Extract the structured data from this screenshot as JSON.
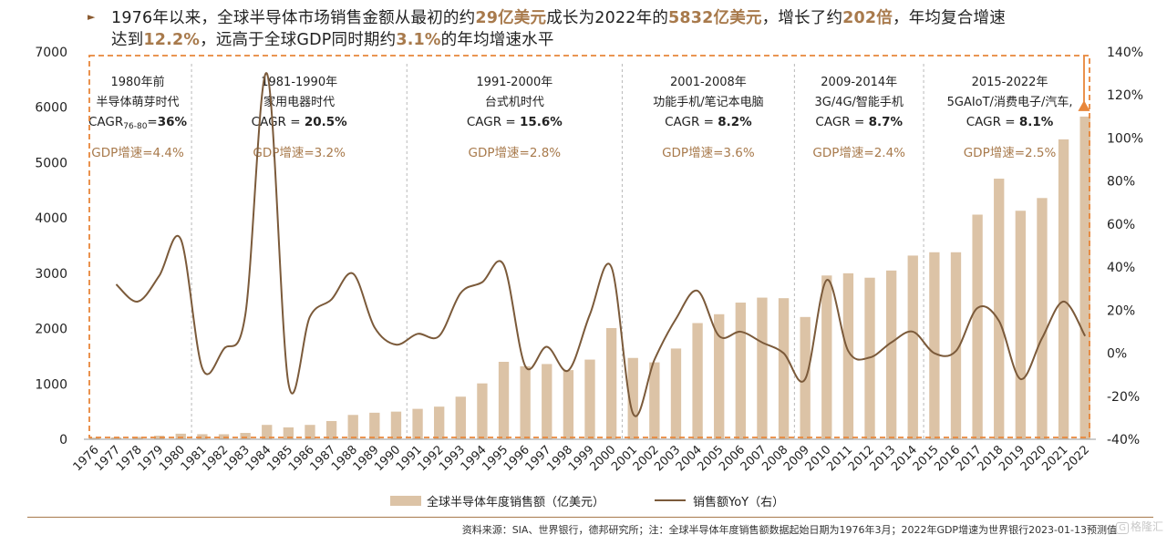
{
  "headline": {
    "l1_a": "1976年以来，全球半导体市场销售金额从最初的约",
    "l1_b": "29亿美元",
    "l1_c": "成长为2022年的",
    "l1_d": "5832亿美元",
    "l1_e": "，增长了约",
    "l1_f": "202倍",
    "l1_g": "，年均复合增速",
    "l2_a": "达到",
    "l2_b": "12.2%",
    "l2_c": "，远高于全球GDP同时期约",
    "l2_d": "3.1%",
    "l2_e": "的年均增速水平"
  },
  "colors": {
    "bar": "#dcc3a6",
    "line": "#7b5a3a",
    "dashed_box": "#e8863a",
    "highlight": "#a87a4c",
    "gdp_text": "#a87a4c"
  },
  "chart_data": {
    "type": "bar",
    "categories": [
      "1976",
      "1977",
      "1978",
      "1979",
      "1980",
      "1981",
      "1982",
      "1983",
      "1984",
      "1985",
      "1986",
      "1987",
      "1988",
      "1989",
      "1990",
      "1991",
      "1992",
      "1993",
      "1994",
      "1995",
      "1996",
      "1997",
      "1998",
      "1999",
      "2000",
      "2001",
      "2002",
      "2003",
      "2004",
      "2005",
      "2006",
      "2007",
      "2008",
      "2009",
      "2010",
      "2011",
      "2012",
      "2013",
      "2014",
      "2015",
      "2016",
      "2017",
      "2018",
      "2019",
      "2020",
      "2021",
      "2022"
    ],
    "series": [
      {
        "name": "全球半导体年度销售额（亿美元）",
        "type": "bar",
        "axis": "left",
        "values": [
          29,
          35,
          43,
          64,
          101,
          92,
          91,
          115,
          260,
          215,
          260,
          330,
          440,
          480,
          500,
          550,
          590,
          770,
          1010,
          1400,
          1320,
          1360,
          1250,
          1440,
          2010,
          1470,
          1390,
          1640,
          2100,
          2260,
          2470,
          2560,
          2550,
          2210,
          2960,
          3000,
          2920,
          3050,
          3320,
          3380,
          3380,
          4060,
          4710,
          4130,
          4360,
          5420,
          5832
        ]
      },
      {
        "name": "销售额YoY（右）",
        "type": "line",
        "axis": "right",
        "values": [
          null,
          32,
          24,
          36,
          53,
          -7,
          2,
          18,
          130,
          -14,
          17,
          25,
          37,
          12,
          4,
          9,
          8,
          28,
          33,
          41,
          -6,
          3,
          -8,
          18,
          40,
          -28,
          -3,
          16,
          29,
          8,
          10,
          5,
          0,
          -12,
          34,
          1,
          -2,
          5,
          10,
          0,
          1,
          21,
          15,
          -12,
          7,
          24,
          8
        ]
      }
    ],
    "y_left": {
      "min": 0,
      "max": 7000,
      "ticks": [
        "0",
        "1000",
        "2000",
        "3000",
        "4000",
        "5000",
        "6000",
        "7000"
      ]
    },
    "y_right": {
      "min": -40,
      "max": 140,
      "ticks": [
        "-40%",
        "-20%",
        "0%",
        "20%",
        "40%",
        "60%",
        "80%",
        "100%",
        "120%",
        "140%"
      ]
    },
    "legend": {
      "position": "bottom",
      "bar_label": "全球半导体年度销售额（亿美元）",
      "line_label": "销售额YoY（右）"
    },
    "grid": false,
    "eras": [
      {
        "from": "1976",
        "to": "1980",
        "title": "1980年前",
        "subtitle": "半导体萌芽时代",
        "cagr_prefix": "CAGR",
        "cagr_sub": "76-80",
        "cagr_mid": "=",
        "cagr_val": "36%",
        "gdp": "GDP增速=4.4%"
      },
      {
        "from": "1981",
        "to": "1990",
        "title": "1981-1990年",
        "subtitle": "家用电器时代",
        "cagr_prefix": "CAGR",
        "cagr_sub": "",
        "cagr_mid": " = ",
        "cagr_val": "20.5%",
        "gdp": "GDP增速=3.2%"
      },
      {
        "from": "1991",
        "to": "2000",
        "title": "1991-2000年",
        "subtitle": "台式机时代",
        "cagr_prefix": "CAGR",
        "cagr_sub": "",
        "cagr_mid": " = ",
        "cagr_val": "15.6%",
        "gdp": "GDP增速=2.8%"
      },
      {
        "from": "2001",
        "to": "2008",
        "title": "2001-2008年",
        "subtitle": "功能手机/笔记本电脑",
        "cagr_prefix": "CAGR",
        "cagr_sub": "",
        "cagr_mid": " = ",
        "cagr_val": "8.2%",
        "gdp": "GDP增速=3.6%"
      },
      {
        "from": "2009",
        "to": "2014",
        "title": "2009-2014年",
        "subtitle": "3G/4G/智能手机",
        "cagr_prefix": "CAGR",
        "cagr_sub": "",
        "cagr_mid": " = ",
        "cagr_val": "8.7%",
        "gdp": "GDP增速=2.4%"
      },
      {
        "from": "2015",
        "to": "2022",
        "title": "2015-2022年",
        "subtitle": "5GAIoT/消费电子/汽车,",
        "cagr_prefix": "CAGR",
        "cagr_sub": "",
        "cagr_mid": " = ",
        "cagr_val": "8.1%",
        "gdp": "GDP增速=2.5%"
      }
    ]
  },
  "footer": {
    "source": "资料来源：SIA、世界银行，德邦研究所；注：全球半导体年度销售额数据起始日期为1976年3月；2022年GDP增速为世界银行2023-01-13预测值"
  },
  "watermark": {
    "icon": "G",
    "text": "格隆汇"
  }
}
